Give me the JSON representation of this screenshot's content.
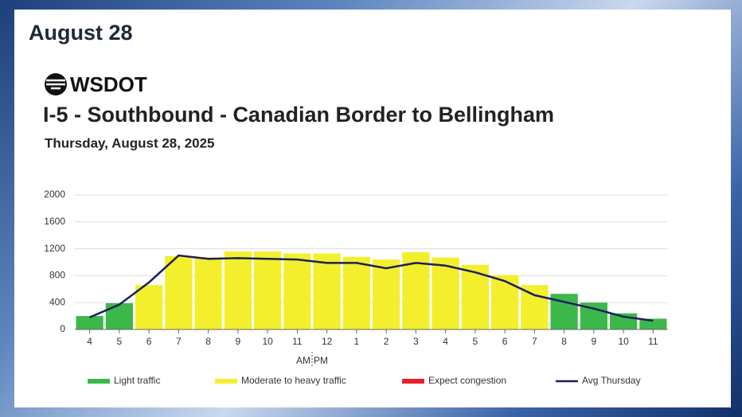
{
  "header": "August 28",
  "chart_data": {
    "type": "bar",
    "logo": "WSDOT",
    "title": "I-5 - Southbound - Canadian Border to Bellingham",
    "subtitle": "Thursday, August 28, 2025",
    "categories": [
      "4",
      "5",
      "6",
      "7",
      "8",
      "9",
      "10",
      "11",
      "12",
      "1",
      "2",
      "3",
      "4",
      "5",
      "6",
      "7",
      "8",
      "9",
      "10",
      "11"
    ],
    "am_pm": [
      "AM",
      "PM"
    ],
    "ylim": [
      0,
      2000
    ],
    "yticks": [
      0,
      400,
      800,
      1200,
      1600,
      2000
    ],
    "grid": true,
    "series": [
      {
        "name": "Light traffic",
        "color": "#3cb84a",
        "values": [
          200,
          390,
          null,
          null,
          null,
          null,
          null,
          null,
          null,
          null,
          null,
          null,
          null,
          null,
          null,
          null,
          530,
          400,
          240,
          160
        ]
      },
      {
        "name": "Moderate to heavy traffic",
        "color": "#f3ef2c",
        "values": [
          null,
          null,
          660,
          1090,
          1070,
          1160,
          1160,
          1130,
          1130,
          1080,
          1040,
          1150,
          1070,
          960,
          810,
          660,
          null,
          null,
          null,
          null
        ]
      },
      {
        "name": "Expect congestion",
        "color": "#e8202a",
        "values": [
          null,
          null,
          null,
          null,
          null,
          null,
          null,
          null,
          null,
          null,
          null,
          null,
          null,
          null,
          null,
          null,
          null,
          null,
          null,
          null
        ]
      },
      {
        "name": "Avg Thursday",
        "type": "line",
        "color": "#1b1f5c",
        "values": [
          180,
          370,
          700,
          1100,
          1050,
          1060,
          1050,
          1040,
          990,
          990,
          910,
          990,
          950,
          850,
          720,
          510,
          410,
          310,
          190,
          130
        ]
      }
    ]
  }
}
